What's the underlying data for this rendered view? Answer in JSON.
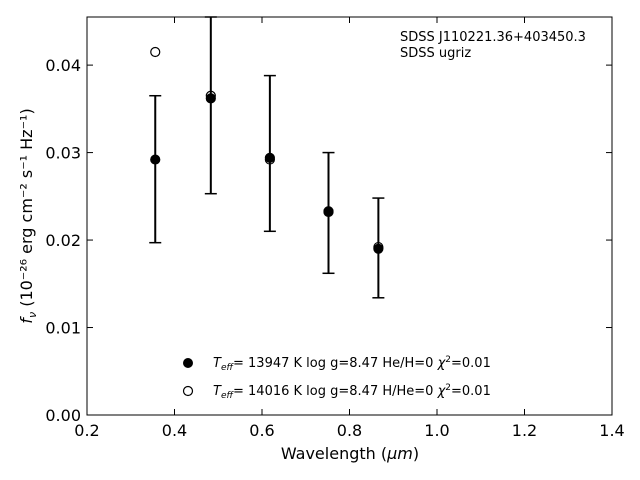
{
  "chart_data": {
    "type": "scatter",
    "annotation": [
      "SDSS J110221.36+403450.3",
      "SDSS ugriz"
    ],
    "xlabel": {
      "prefix": "Wavelength (",
      "unit": "μm",
      "suffix": ")"
    },
    "ylabel": {
      "symbol": "f",
      "sub": "ν",
      "units": "(10⁻²⁶ erg cm⁻² s⁻¹ Hz⁻¹)"
    },
    "xlim": [
      0.2,
      1.4
    ],
    "ylim": [
      0.0,
      0.0455
    ],
    "xticks": [
      0.2,
      0.4,
      0.6,
      0.8,
      1.0,
      1.2,
      1.4
    ],
    "xtick_labels": [
      "0.2",
      "0.4",
      "0.6",
      "0.8",
      "1.0",
      "1.2",
      "1.4"
    ],
    "yticks": [
      0.0,
      0.01,
      0.02,
      0.03,
      0.04
    ],
    "ytick_labels": [
      "0.00",
      "0.01",
      "0.02",
      "0.03",
      "0.04"
    ],
    "grid": false,
    "legend_position": "bottom-center",
    "observed": {
      "x": [
        0.356,
        0.483,
        0.618,
        0.752,
        0.866
      ],
      "y": [
        0.0292,
        0.0365,
        0.0294,
        0.0233,
        0.0191
      ],
      "yerr_low": [
        0.0197,
        0.0253,
        0.021,
        0.0162,
        0.0134
      ],
      "yerr_high": [
        0.0365,
        0.0455,
        0.0388,
        0.03,
        0.0248
      ]
    },
    "series": [
      {
        "marker": "filled-circle",
        "legend": {
          "teff_value": "= 13947 K  log g=8.47  He/H=0  ",
          "chi2_value": "=0.01"
        },
        "x": [
          0.356,
          0.483,
          0.618,
          0.752,
          0.866
        ],
        "y": [
          0.0292,
          0.0362,
          0.0294,
          0.0233,
          0.019
        ]
      },
      {
        "marker": "open-circle",
        "legend": {
          "teff_value": "= 14016 K  log g=8.47  H/He=0  ",
          "chi2_value": "=0.01"
        },
        "x": [
          0.356,
          0.483,
          0.618,
          0.752,
          0.866
        ],
        "y": [
          0.0415,
          0.0365,
          0.0292,
          0.0232,
          0.0192
        ]
      }
    ]
  }
}
